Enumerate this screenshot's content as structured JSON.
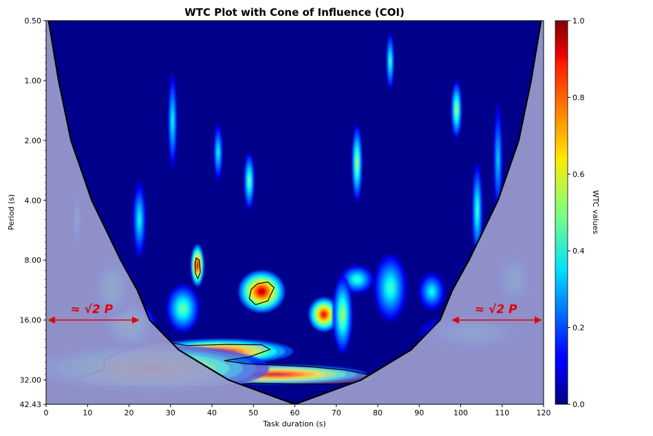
{
  "chart_data": {
    "type": "heatmap",
    "title": "WTC Plot with Cone of Influence (COI)",
    "xlabel": "Task duration (s)",
    "ylabel": "Period (s)",
    "xlim": [
      0,
      120
    ],
    "ylim": [
      0.5,
      42.43
    ],
    "y_scale": "log2",
    "y_inverted": true,
    "x_ticks": [
      0,
      10,
      20,
      30,
      40,
      50,
      60,
      70,
      80,
      90,
      100,
      110,
      120
    ],
    "y_ticks": [
      0.5,
      1.0,
      2.0,
      4.0,
      8.0,
      16.0,
      32.0,
      42.43
    ],
    "y_tick_labels": [
      "0.50",
      "1.00",
      "2.00",
      "4.00",
      "8.00",
      "16.00",
      "32.00",
      "42.43"
    ],
    "colorbar": {
      "label": "WTC values",
      "range": [
        0,
        1
      ],
      "ticks": [
        0.0,
        0.2,
        0.4,
        0.6,
        0.8,
        1.0
      ],
      "tick_labels": [
        "0.0",
        "0.2",
        "0.4",
        "0.6",
        "0.8",
        "1.0"
      ],
      "colormap": "jet"
    },
    "coi": {
      "outside_shade_color": "#9a9ccc",
      "line_color": "#000000",
      "left_edge": [
        [
          0.6,
          0.5
        ],
        [
          3,
          1.0
        ],
        [
          6,
          2.0
        ],
        [
          11,
          4.0
        ],
        [
          18,
          8.0
        ],
        [
          22,
          11.3
        ],
        [
          25,
          16.0
        ],
        [
          32,
          22.6
        ],
        [
          44,
          32.0
        ],
        [
          60,
          42.43
        ]
      ],
      "right_edge": [
        [
          60,
          42.43
        ],
        [
          76,
          32.0
        ],
        [
          88,
          22.6
        ],
        [
          95,
          16.0
        ],
        [
          98,
          11.3
        ],
        [
          102,
          8.0
        ],
        [
          109,
          4.0
        ],
        [
          114,
          2.0
        ],
        [
          117,
          1.0
        ],
        [
          119.4,
          0.5
        ]
      ]
    },
    "blobs": [
      {
        "x": 36.5,
        "period": 8.5,
        "value": 0.95,
        "sx": 1.0,
        "sp": 0.22
      },
      {
        "x": 52,
        "period": 11.5,
        "value": 0.97,
        "sx": 3.5,
        "sp": 0.22
      },
      {
        "x": 67,
        "period": 15,
        "value": 0.92,
        "sx": 2.3,
        "sp": 0.18
      },
      {
        "x": 55,
        "period": 30,
        "value": 0.98,
        "sx": 14,
        "sp": 0.1
      },
      {
        "x": 42,
        "period": 23,
        "value": 0.95,
        "sx": 11,
        "sp": 0.13
      },
      {
        "x": 25,
        "period": 28,
        "value": 0.75,
        "sx": 18,
        "sp": 0.25
      },
      {
        "x": 20,
        "period": 17,
        "value": 0.55,
        "sx": 4,
        "sp": 0.25
      },
      {
        "x": 16,
        "period": 11,
        "value": 0.5,
        "sx": 3,
        "sp": 0.3
      },
      {
        "x": 33,
        "period": 14,
        "value": 0.5,
        "sx": 2.5,
        "sp": 0.25
      },
      {
        "x": 75,
        "period": 10,
        "value": 0.45,
        "sx": 2.5,
        "sp": 0.15
      },
      {
        "x": 83,
        "period": 11,
        "value": 0.45,
        "sx": 2.5,
        "sp": 0.35
      },
      {
        "x": 93,
        "period": 11.5,
        "value": 0.4,
        "sx": 2,
        "sp": 0.2
      },
      {
        "x": 113,
        "period": 10,
        "value": 0.4,
        "sx": 3,
        "sp": 0.3
      },
      {
        "x": 103,
        "period": 18.5,
        "value": 0.4,
        "sx": 8,
        "sp": 0.2
      },
      {
        "x": 75,
        "period": 2.6,
        "value": 0.55,
        "sx": 0.8,
        "sp": 0.4
      },
      {
        "x": 99,
        "period": 1.4,
        "value": 0.55,
        "sx": 0.8,
        "sp": 0.3
      },
      {
        "x": 83,
        "period": 0.8,
        "value": 0.45,
        "sx": 0.6,
        "sp": 0.3
      },
      {
        "x": 49,
        "period": 3.2,
        "value": 0.5,
        "sx": 0.8,
        "sp": 0.3
      },
      {
        "x": 41.5,
        "period": 2.3,
        "value": 0.4,
        "sx": 0.7,
        "sp": 0.3
      },
      {
        "x": 104,
        "period": 4.5,
        "value": 0.45,
        "sx": 0.8,
        "sp": 0.5
      },
      {
        "x": 7.5,
        "period": 5.0,
        "value": 0.4,
        "sx": 0.7,
        "sp": 0.3
      },
      {
        "x": 22.5,
        "period": 5.0,
        "value": 0.4,
        "sx": 1.0,
        "sp": 0.4
      },
      {
        "x": 30.5,
        "period": 1.6,
        "value": 0.4,
        "sx": 0.7,
        "sp": 0.5
      },
      {
        "x": 109,
        "period": 2.5,
        "value": 0.35,
        "sx": 0.7,
        "sp": 0.6
      },
      {
        "x": 71.5,
        "period": 15,
        "value": 0.55,
        "sx": 1.5,
        "sp": 0.4
      }
    ],
    "significance_contours": [
      {
        "name": "left-red-island",
        "points": [
          [
            36.2,
            7.8
          ],
          [
            37.0,
            8.0
          ],
          [
            37.2,
            9.2
          ],
          [
            36.6,
            9.9
          ],
          [
            36.0,
            9.3
          ],
          [
            35.9,
            8.3
          ]
        ]
      },
      {
        "name": "center-red-island",
        "points": [
          [
            51,
            10.5
          ],
          [
            53.5,
            10.3
          ],
          [
            55,
            11.0
          ],
          [
            53.5,
            12.8
          ],
          [
            50.5,
            13.4
          ],
          [
            49,
            12.5
          ],
          [
            49.5,
            11.2
          ]
        ]
      },
      {
        "name": "lower-band-upper",
        "points": [
          [
            28,
            20.5
          ],
          [
            34,
            21.5
          ],
          [
            44,
            21.2
          ],
          [
            52,
            21.3
          ],
          [
            54,
            22.5
          ],
          [
            49,
            24.5
          ],
          [
            43,
            25.6
          ],
          [
            48,
            26.5
          ],
          [
            56,
            27.0
          ],
          [
            64,
            27.5
          ],
          [
            72,
            28.5
          ],
          [
            80,
            30.8
          ],
          [
            78,
            32.5
          ],
          [
            70,
            33.5
          ],
          [
            60,
            33.5
          ],
          [
            50,
            33.2
          ],
          [
            40,
            34.5
          ],
          [
            30,
            35.0
          ],
          [
            20,
            35.0
          ],
          [
            12,
            34.5
          ],
          [
            7.5,
            32.5
          ],
          [
            9,
            30.5
          ],
          [
            14,
            28.5
          ],
          [
            14,
            25.5
          ],
          [
            17,
            23.5
          ],
          [
            21,
            22.0
          ]
        ]
      }
    ],
    "significance_fill": "#f0b0b0",
    "annotations": [
      {
        "text": "≈ √2 P",
        "x_from": 0.6,
        "x_to": 22.3,
        "period": 16.0,
        "label_x": 11
      },
      {
        "text": "≈ √2 P",
        "x_from": 98,
        "x_to": 119.4,
        "period": 16.0,
        "label_x": 108.5
      }
    ],
    "annotation_color": "#e00000"
  }
}
